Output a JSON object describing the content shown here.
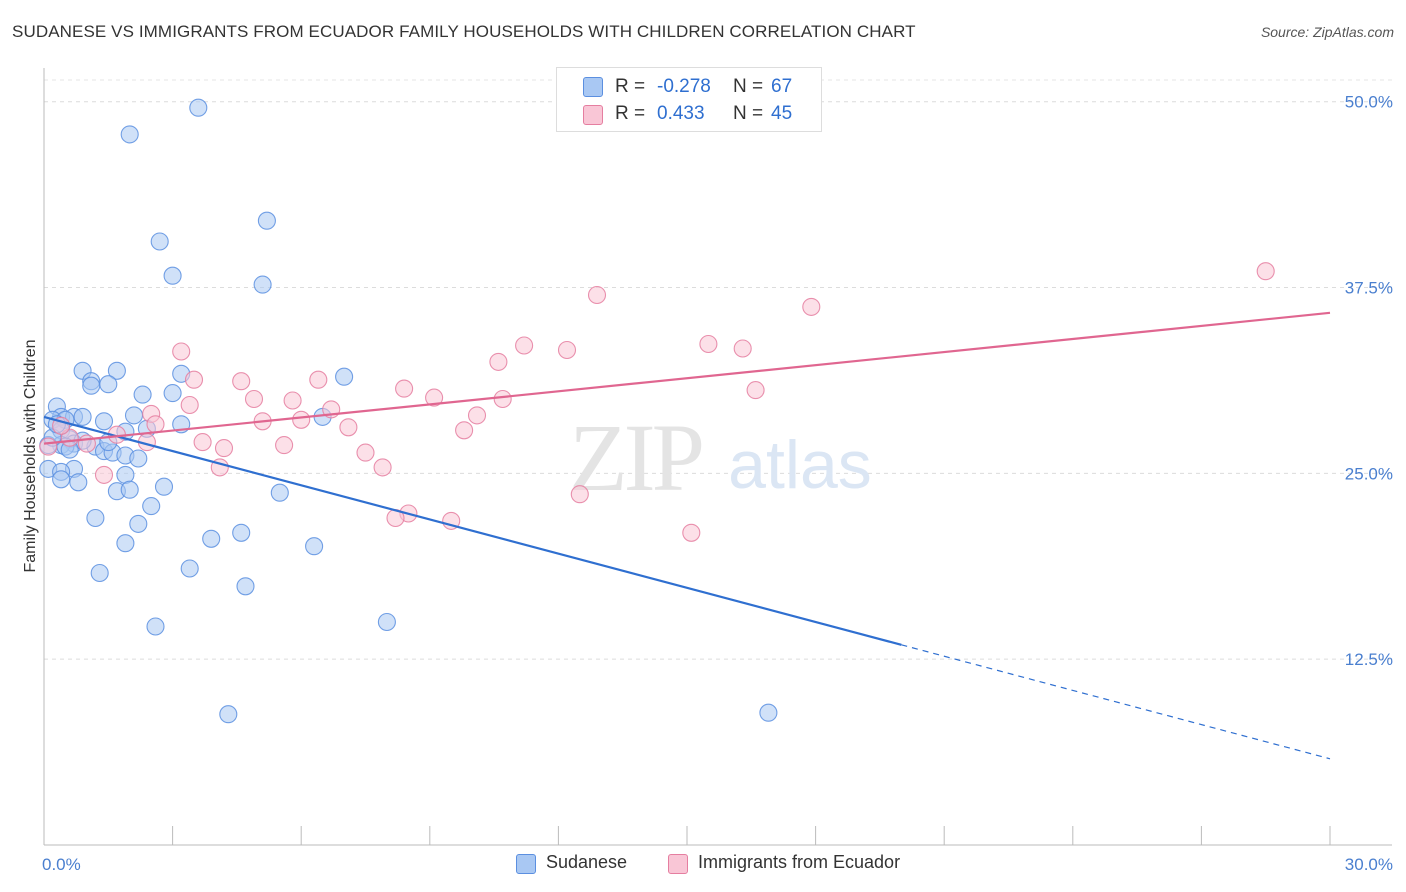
{
  "title": "SUDANESE VS IMMIGRANTS FROM ECUADOR FAMILY HOUSEHOLDS WITH CHILDREN CORRELATION CHART",
  "source": "Source: ZipAtlas.com",
  "watermark": {
    "zip": "ZIP",
    "atlas": "atlas"
  },
  "legend": {
    "r_label": "R =",
    "n_label": "N =",
    "rows": [
      {
        "r": "-0.278",
        "n": "67",
        "color": "#a9c8f3",
        "border": "#5b8fe0"
      },
      {
        "r": "0.433",
        "n": "45",
        "color": "#f9c6d6",
        "border": "#e57ea0"
      }
    ]
  },
  "bottom_legend": [
    "Sudanese",
    "Immigrants from Ecuador"
  ],
  "colors": {
    "blue_line": "#2f6fd0",
    "pink_line": "#e06690",
    "blue_fill": "#a9c8f3",
    "pink_fill": "#f9c6d6"
  },
  "chart_data": {
    "type": "scatter",
    "xlabel": "",
    "ylabel": "Family Households with Children",
    "xlim": [
      0,
      30
    ],
    "ylim": [
      0,
      52
    ],
    "x_tick_labels": [
      "0.0%",
      "30.0%"
    ],
    "y_ticks": [
      12.5,
      25,
      37.5,
      50
    ],
    "y_tick_labels": [
      "12.5%",
      "25.0%",
      "37.5%",
      "50.0%"
    ],
    "grid": true,
    "series": [
      {
        "name": "Sudanese",
        "points": [
          [
            3.6,
            49.6
          ],
          [
            2.0,
            47.8
          ],
          [
            5.2,
            42.0
          ],
          [
            2.7,
            40.6
          ],
          [
            3.0,
            38.3
          ],
          [
            5.1,
            37.7
          ],
          [
            0.9,
            31.9
          ],
          [
            1.7,
            31.9
          ],
          [
            3.2,
            31.7
          ],
          [
            7.0,
            31.5
          ],
          [
            1.1,
            31.2
          ],
          [
            1.5,
            31.0
          ],
          [
            1.1,
            30.9
          ],
          [
            2.3,
            30.3
          ],
          [
            3.0,
            30.4
          ],
          [
            0.3,
            29.5
          ],
          [
            0.4,
            28.8
          ],
          [
            0.7,
            28.8
          ],
          [
            0.9,
            28.8
          ],
          [
            2.1,
            28.9
          ],
          [
            6.5,
            28.8
          ],
          [
            0.2,
            28.6
          ],
          [
            0.5,
            28.6
          ],
          [
            1.4,
            28.5
          ],
          [
            3.2,
            28.3
          ],
          [
            0.4,
            27.9
          ],
          [
            1.9,
            27.8
          ],
          [
            0.6,
            27.3
          ],
          [
            0.7,
            27.0
          ],
          [
            0.4,
            26.9
          ],
          [
            0.1,
            26.9
          ],
          [
            1.2,
            26.8
          ],
          [
            0.5,
            26.8
          ],
          [
            1.4,
            26.5
          ],
          [
            1.6,
            26.4
          ],
          [
            1.9,
            26.2
          ],
          [
            2.2,
            26.0
          ],
          [
            0.1,
            25.3
          ],
          [
            0.7,
            25.3
          ],
          [
            0.4,
            25.1
          ],
          [
            0.4,
            24.6
          ],
          [
            0.8,
            24.4
          ],
          [
            1.9,
            24.9
          ],
          [
            2.8,
            24.1
          ],
          [
            1.7,
            23.8
          ],
          [
            2.0,
            23.9
          ],
          [
            5.5,
            23.7
          ],
          [
            2.5,
            22.8
          ],
          [
            1.2,
            22.0
          ],
          [
            2.2,
            21.6
          ],
          [
            3.9,
            20.6
          ],
          [
            4.6,
            21.0
          ],
          [
            1.9,
            20.3
          ],
          [
            6.3,
            20.1
          ],
          [
            3.4,
            18.6
          ],
          [
            1.3,
            18.3
          ],
          [
            4.7,
            17.4
          ],
          [
            8.0,
            15.0
          ],
          [
            2.6,
            14.7
          ],
          [
            4.3,
            8.8
          ],
          [
            16.9,
            8.9
          ],
          [
            0.2,
            27.4
          ],
          [
            0.9,
            27.2
          ],
          [
            1.5,
            27.1
          ],
          [
            0.3,
            28.3
          ],
          [
            2.4,
            28.0
          ],
          [
            0.6,
            26.6
          ]
        ]
      },
      {
        "name": "Immigrants from Ecuador",
        "points": [
          [
            28.5,
            38.6
          ],
          [
            12.9,
            37.0
          ],
          [
            17.9,
            36.2
          ],
          [
            11.2,
            33.6
          ],
          [
            12.2,
            33.3
          ],
          [
            15.5,
            33.7
          ],
          [
            16.3,
            33.4
          ],
          [
            3.2,
            33.2
          ],
          [
            10.6,
            32.5
          ],
          [
            3.5,
            31.3
          ],
          [
            4.6,
            31.2
          ],
          [
            6.4,
            31.3
          ],
          [
            8.4,
            30.7
          ],
          [
            16.6,
            30.6
          ],
          [
            4.9,
            30.0
          ],
          [
            5.8,
            29.9
          ],
          [
            9.1,
            30.1
          ],
          [
            10.7,
            30.0
          ],
          [
            3.4,
            29.6
          ],
          [
            6.7,
            29.3
          ],
          [
            2.5,
            29.0
          ],
          [
            10.1,
            28.9
          ],
          [
            5.1,
            28.5
          ],
          [
            6.0,
            28.6
          ],
          [
            2.6,
            28.3
          ],
          [
            7.1,
            28.1
          ],
          [
            9.8,
            27.9
          ],
          [
            1.7,
            27.6
          ],
          [
            0.6,
            27.4
          ],
          [
            2.4,
            27.1
          ],
          [
            3.7,
            27.1
          ],
          [
            5.6,
            26.9
          ],
          [
            4.2,
            26.7
          ],
          [
            7.5,
            26.4
          ],
          [
            0.1,
            26.8
          ],
          [
            4.1,
            25.4
          ],
          [
            7.9,
            25.4
          ],
          [
            1.4,
            24.9
          ],
          [
            12.5,
            23.6
          ],
          [
            8.5,
            22.3
          ],
          [
            8.2,
            22.0
          ],
          [
            9.5,
            21.8
          ],
          [
            15.1,
            21.0
          ],
          [
            0.4,
            28.2
          ],
          [
            1.0,
            27.0
          ]
        ]
      }
    ],
    "trendlines": [
      {
        "series": "Sudanese",
        "from": [
          0,
          28.8
        ],
        "solid_to": 20.0,
        "to": [
          30,
          5.8
        ],
        "dashed_after_solid": true
      },
      {
        "series": "Immigrants from Ecuador",
        "from": [
          0,
          27.0
        ],
        "to": [
          30,
          35.8
        ]
      }
    ]
  }
}
